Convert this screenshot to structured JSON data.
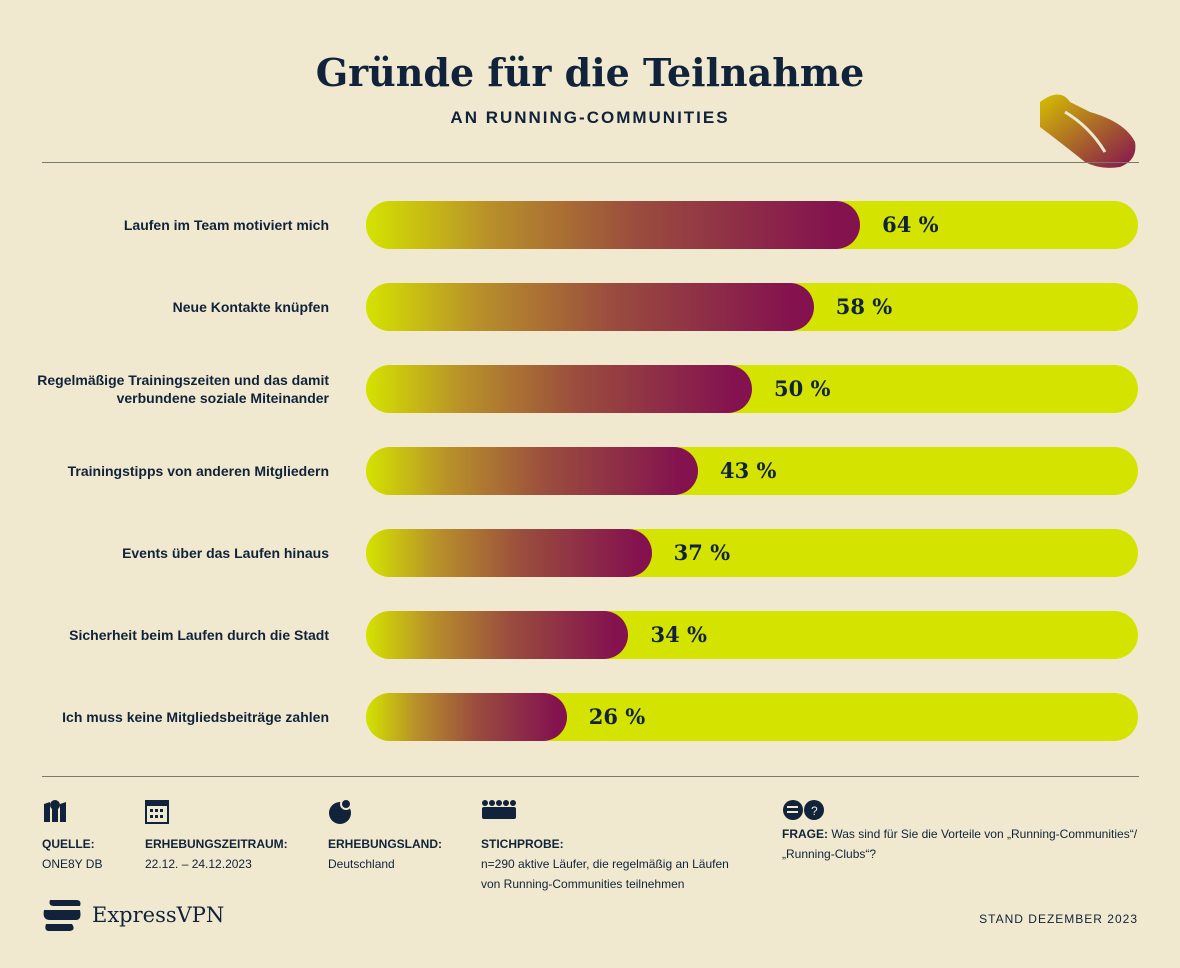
{
  "title": "Gründe für die Teilnahme",
  "subtitle": "AN RUNNING-COMMUNITIES",
  "chart_data": {
    "type": "bar",
    "orientation": "horizontal",
    "categories": [
      "Laufen im Team motiviert mich",
      "Neue Kontakte knüpfen",
      "Regelmäßige Trainingszeiten und das damit verbundene soziale Miteinander",
      "Trainingstipps von anderen Mitgliedern",
      "Events über das Laufen hinaus",
      "Sicherheit beim Laufen durch die Stadt",
      "Ich muss keine Mitgliedsbeiträge zahlen"
    ],
    "values": [
      64,
      58,
      50,
      43,
      37,
      34,
      26
    ],
    "labels": [
      "64 %",
      "58 %",
      "50 %",
      "43 %",
      "37 %",
      "34 %",
      "26 %"
    ],
    "xlim": [
      0,
      100
    ],
    "colors": {
      "track": "#d4e300",
      "gradient_start": "#d4e300",
      "gradient_end": "#84124f"
    }
  },
  "footer": {
    "source_label": "QUELLE:",
    "source": "ONE8Y DB",
    "period_label": "ERHEBUNGSZEITRAUM:",
    "period": "22.12. – 24.12.2023",
    "country_label": "ERHEBUNGSLAND:",
    "country": "Deutschland",
    "sample_label": "STICHPROBE:",
    "sample": "n=290 aktive Läufer, die regelmäßig an Läufen von Running-Communities teilnehmen",
    "question_label": "FRAGE:",
    "question": "Was sind für Sie die Vorteile von „Running-Communities“/ „Running-Clubs“?",
    "brand": "ExpressVPN",
    "stand": "STAND DEZEMBER 2023"
  }
}
